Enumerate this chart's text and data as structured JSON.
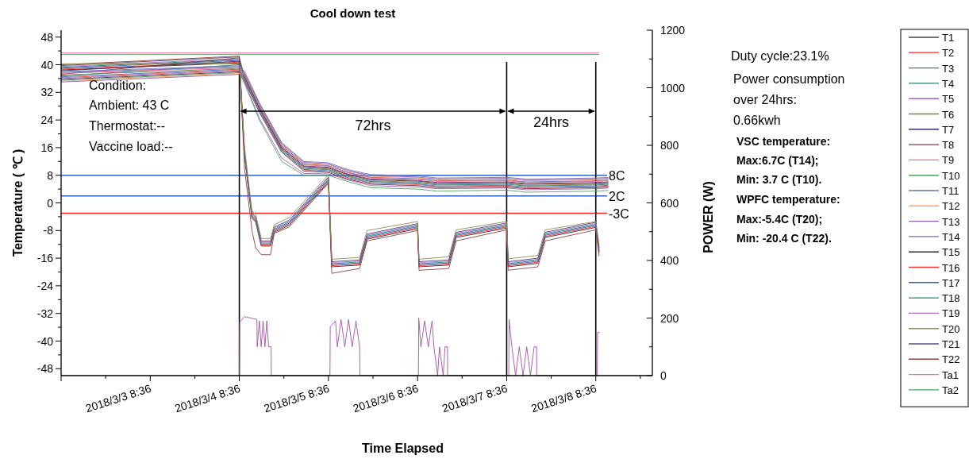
{
  "chart_data": {
    "type": "line",
    "title": "Cool down test",
    "xlabel": "Time Elapsed",
    "ylabel": "Temperature ( ℃ )",
    "y2label": "POWER (W)",
    "legend": "right",
    "annotations": [
      "72hrs",
      "24hrs",
      "Condition:",
      "Ambient: 43 C",
      "Thermostat:--",
      "Vaccine load:--",
      "Duty cycle:23.1%",
      "Power consumption",
      "over 24hrs:",
      "0.66kwh",
      "VSC temperature:",
      "Max:6.7C (T14);",
      "Min: 3.7 C (T10).",
      "WPFC temperature:",
      "Max:-5.4C (T20);",
      "Min: -20.4 C (T22)."
    ],
    "xlim": [
      "2018-03-02T08:36",
      "2018-03-08T23:50"
    ],
    "xticks": [
      {
        "value": "2018-03-02T08:36",
        "label": null
      },
      {
        "value": "2018-03-02T20:36",
        "label": null
      },
      {
        "value": "2018-03-03T08:36",
        "label": "2018/3/3 8:36"
      },
      {
        "value": "2018-03-03T20:36",
        "label": null
      },
      {
        "value": "2018-03-04T08:36",
        "label": "2018/3/4 8:36"
      },
      {
        "value": "2018-03-04T20:36",
        "label": null
      },
      {
        "value": "2018-03-05T08:36",
        "label": "2018/3/5 8:36"
      },
      {
        "value": "2018-03-05T20:36",
        "label": null
      },
      {
        "value": "2018-03-06T08:36",
        "label": "2018/3/6 8:36"
      },
      {
        "value": "2018-03-06T20:36",
        "label": null
      },
      {
        "value": "2018-03-07T08:36",
        "label": "2018/3/7 8:36"
      },
      {
        "value": "2018-03-07T20:36",
        "label": null
      },
      {
        "value": "2018-03-08T08:36",
        "label": "2018/3/8 8:36"
      },
      {
        "value": "2018-03-08T20:36",
        "label": null
      }
    ],
    "ylim": [
      -50,
      50
    ],
    "yticks": [
      -48,
      {
        "value": -44,
        "label": null
      },
      -40,
      {
        "value": -36,
        "label": null
      },
      -32,
      {
        "value": -28,
        "label": null
      },
      -24,
      {
        "value": -20,
        "label": null
      },
      -16,
      {
        "value": -12,
        "label": null
      },
      -8,
      {
        "value": -4,
        "label": null
      },
      0,
      {
        "value": 4,
        "label": null
      },
      8,
      {
        "value": 12,
        "label": null
      },
      16,
      {
        "value": 20,
        "label": null
      },
      24,
      {
        "value": 28,
        "label": null
      },
      32,
      {
        "value": 36,
        "label": null
      },
      40,
      {
        "value": 44,
        "label": null
      },
      48
    ],
    "y2lim": [
      0,
      1200
    ],
    "y2ticks": [
      0,
      {
        "value": 100,
        "label": null
      },
      200,
      {
        "value": 300,
        "label": null
      },
      400,
      {
        "value": 500,
        "label": null
      },
      600,
      {
        "value": 700,
        "label": null
      },
      800,
      {
        "value": 900,
        "label": null
      },
      1000,
      {
        "value": 1100,
        "label": null
      },
      1200
    ],
    "ref_lines": [
      {
        "axis": "y",
        "value": 8,
        "label": "8C",
        "color": "#3060c0"
      },
      {
        "axis": "y",
        "value": 2,
        "label": "2C",
        "color": "#3060c0"
      },
      {
        "axis": "y",
        "value": -3,
        "label": "-3C",
        "color": "#ff2020"
      },
      {
        "axis": "x",
        "value": "2018-03-04T08:36",
        "label": null,
        "color": "#000000"
      },
      {
        "axis": "x",
        "value": "2018-03-07T08:36",
        "label": null,
        "color": "#000000"
      },
      {
        "axis": "x",
        "value": "2018-03-08T08:36",
        "label": null,
        "color": "#000000"
      }
    ],
    "x": [
      "2018-03-02T08:36",
      "2018-03-04T08:36",
      "2018-03-04T10:00",
      "2018-03-04T14:00",
      "2018-03-04T20:00",
      "2018-03-05T02:00",
      "2018-03-05T08:36",
      "2018-03-05T14:00",
      "2018-03-05T20:00",
      "2018-03-06T08:36",
      "2018-03-06T14:00",
      "2018-03-07T08:36",
      "2018-03-07T14:00",
      "2018-03-08T08:36",
      "2018-03-08T12:00"
    ],
    "series": [
      {
        "name": "Ta1",
        "color": "#ff60a0",
        "x": [
          "2018-03-02T08:36",
          "2018-03-08T09:30"
        ],
        "values": [
          43.4,
          43.4
        ]
      },
      {
        "name": "Ta2",
        "color": "#50a060",
        "x": [
          "2018-03-02T08:36",
          "2018-03-08T09:30"
        ],
        "values": [
          43,
          43
        ]
      },
      {
        "name": "T15",
        "color": "#303030",
        "x": [
          "2018-03-02T08:36",
          "2018-03-04T08:36",
          "2018-03-04T10:00",
          "2018-03-04T12:00",
          "2018-03-04T13:00",
          "2018-03-04T14:30",
          "2018-03-04T17:00",
          "2018-03-04T18:00",
          "2018-03-04T22:00",
          "2018-03-05T08:36",
          "2018-03-05T09:30",
          "2018-03-05T17:00",
          "2018-03-05T19:00",
          "2018-03-06T08:36",
          "2018-03-06T09:00",
          "2018-03-06T17:00",
          "2018-03-06T19:00",
          "2018-03-07T08:36",
          "2018-03-07T09:00",
          "2018-03-07T17:00",
          "2018-03-07T19:00",
          "2018-03-08T08:36",
          "2018-03-08T09:30"
        ],
        "values": [
          38.5,
          40.5,
          13.5,
          -4.5,
          -5.5,
          -12.5,
          -12.5,
          -8.5,
          -6.5,
          6,
          -18.5,
          -18,
          -10.5,
          -7.5,
          -18.5,
          -18,
          -10,
          -7.3,
          -18.5,
          -17.5,
          -10,
          -7.1,
          -14.5
        ]
      },
      {
        "name": "T16",
        "color": "#ff3030",
        "x": [
          "2018-03-02T08:36",
          "2018-03-04T08:36",
          "2018-03-04T10:00",
          "2018-03-04T12:00",
          "2018-03-04T13:00",
          "2018-03-04T14:30",
          "2018-03-04T17:00",
          "2018-03-04T18:00",
          "2018-03-04T22:00",
          "2018-03-05T08:36",
          "2018-03-05T09:30",
          "2018-03-05T17:00",
          "2018-03-05T19:00",
          "2018-03-06T08:36",
          "2018-03-06T09:00",
          "2018-03-06T17:00",
          "2018-03-06T19:00",
          "2018-03-07T08:36",
          "2018-03-07T09:00",
          "2018-03-07T17:00",
          "2018-03-07T19:00",
          "2018-03-08T08:36",
          "2018-03-08T09:30"
        ],
        "values": [
          38.75,
          40.75,
          13.8,
          -4.2,
          -5.2,
          -12.2,
          -12.2,
          -8.2,
          -6.2,
          6.3,
          -18.2,
          -17.7,
          -10.2,
          -7.2,
          -18.2,
          -17.7,
          -9.7,
          -7,
          -18.2,
          -17.2,
          -9.7,
          -6.8,
          -14.2
        ]
      },
      {
        "name": "T17",
        "color": "#3060b0",
        "x": [
          "2018-03-02T08:36",
          "2018-03-04T08:36",
          "2018-03-04T10:00",
          "2018-03-04T12:00",
          "2018-03-04T13:00",
          "2018-03-04T14:30",
          "2018-03-04T17:00",
          "2018-03-04T18:00",
          "2018-03-04T22:00",
          "2018-03-05T08:36",
          "2018-03-05T09:30",
          "2018-03-05T17:00",
          "2018-03-05T19:00",
          "2018-03-06T08:36",
          "2018-03-06T09:00",
          "2018-03-06T17:00",
          "2018-03-06T19:00",
          "2018-03-07T08:36",
          "2018-03-07T09:00",
          "2018-03-07T17:00",
          "2018-03-07T19:00",
          "2018-03-08T08:36",
          "2018-03-08T09:30"
        ],
        "values": [
          39,
          41.25,
          14.1,
          -3.9,
          -4.9,
          -11.9,
          -11.9,
          -7.9,
          -5.9,
          6.6,
          -17.9,
          -17.4,
          -9.9,
          -6.9,
          -17.9,
          -17.4,
          -9.4,
          -6.7,
          -17.9,
          -16.9,
          -9.4,
          -6.5,
          -13.9
        ]
      },
      {
        "name": "T18",
        "color": "#208080",
        "x": [
          "2018-03-02T08:36",
          "2018-03-04T08:36",
          "2018-03-04T10:00",
          "2018-03-04T12:00",
          "2018-03-04T13:00",
          "2018-03-04T14:30",
          "2018-03-04T17:00",
          "2018-03-04T18:00",
          "2018-03-04T22:00",
          "2018-03-05T08:36",
          "2018-03-05T09:30",
          "2018-03-05T17:00",
          "2018-03-05T19:00",
          "2018-03-06T08:36",
          "2018-03-06T09:00",
          "2018-03-06T17:00",
          "2018-03-06T19:00",
          "2018-03-07T08:36",
          "2018-03-07T09:00",
          "2018-03-07T17:00",
          "2018-03-07T19:00",
          "2018-03-08T08:36",
          "2018-03-08T09:30"
        ],
        "values": [
          39.25,
          41.5,
          14.4,
          -3.6,
          -4.6,
          -11.6,
          -11.6,
          -7.6,
          -5.6,
          6.9,
          -17.6,
          -17.1,
          -9.6,
          -6.6,
          -17.6,
          -17.1,
          -9.1,
          -6.4,
          -17.6,
          -16.6,
          -9.1,
          -6.2,
          -13.6
        ]
      },
      {
        "name": "T19",
        "color": "#b070c0",
        "x": [
          "2018-03-02T08:36",
          "2018-03-04T08:36",
          "2018-03-04T10:00",
          "2018-03-04T12:00",
          "2018-03-04T13:00",
          "2018-03-04T14:30",
          "2018-03-04T17:00",
          "2018-03-04T18:00",
          "2018-03-04T22:00",
          "2018-03-05T08:36",
          "2018-03-05T09:30",
          "2018-03-05T17:00",
          "2018-03-05T19:00",
          "2018-03-06T08:36",
          "2018-03-06T09:00",
          "2018-03-06T17:00",
          "2018-03-06T19:00",
          "2018-03-07T08:36",
          "2018-03-07T09:00",
          "2018-03-07T17:00",
          "2018-03-07T19:00",
          "2018-03-08T08:36",
          "2018-03-08T09:30"
        ],
        "values": [
          39.5,
          41.75,
          14.7,
          -3.3,
          -4.3,
          -11.3,
          -11.3,
          -7.3,
          -5.3,
          7.2,
          -17.3,
          -16.8,
          -9.3,
          -6.3,
          -17.3,
          -16.8,
          -8.8,
          -6.1,
          -17.3,
          -16.3,
          -8.8,
          -5.9,
          -13.3
        ]
      },
      {
        "name": "T21",
        "color": "#505080",
        "x": [
          "2018-03-02T08:36",
          "2018-03-04T08:36",
          "2018-03-04T10:00",
          "2018-03-04T12:00",
          "2018-03-04T13:00",
          "2018-03-04T14:30",
          "2018-03-04T17:00",
          "2018-03-04T18:00",
          "2018-03-04T22:00",
          "2018-03-05T08:36",
          "2018-03-05T09:30",
          "2018-03-05T17:00",
          "2018-03-05T19:00",
          "2018-03-06T08:36",
          "2018-03-06T09:00",
          "2018-03-06T17:00",
          "2018-03-06T19:00",
          "2018-03-07T08:36",
          "2018-03-07T09:00",
          "2018-03-07T17:00",
          "2018-03-07T19:00",
          "2018-03-08T08:36",
          "2018-03-08T09:30"
        ],
        "values": [
          39.75,
          42.25,
          15,
          -3,
          -4,
          -11,
          -11,
          -7,
          -5,
          7.5,
          -17,
          -16.5,
          -9,
          -6,
          -17,
          -16.5,
          -8.5,
          -5.8,
          -17,
          -16,
          -8.5,
          -5.6,
          -13
        ]
      },
      {
        "name": "T22",
        "color": "#904040",
        "x": [
          "2018-03-02T08:36",
          "2018-03-04T08:36",
          "2018-03-04T10:00",
          "2018-03-04T12:00",
          "2018-03-04T13:00",
          "2018-03-04T14:30",
          "2018-03-04T17:00",
          "2018-03-04T18:00",
          "2018-03-04T22:00",
          "2018-03-05T08:36",
          "2018-03-05T09:30",
          "2018-03-05T17:00",
          "2018-03-05T19:00",
          "2018-03-06T08:36",
          "2018-03-06T09:00",
          "2018-03-06T17:00",
          "2018-03-06T19:00",
          "2018-03-07T08:36",
          "2018-03-07T09:00",
          "2018-03-07T17:00",
          "2018-03-07T19:00",
          "2018-03-08T08:36",
          "2018-03-08T09:30"
        ],
        "values": [
          40,
          42.5,
          10,
          -8,
          -13,
          -15,
          -15,
          -8.8,
          -7,
          5.7,
          -20.4,
          -19,
          -11,
          -8,
          -19.5,
          -19,
          -11,
          -7.8,
          -19.5,
          -18.5,
          -11,
          -7.8,
          -15.5
        ]
      },
      {
        "name": "T20",
        "color": "#909050",
        "x": [
          "2018-03-02T08:36",
          "2018-03-04T08:36",
          "2018-03-04T10:00",
          "2018-03-04T12:00",
          "2018-03-04T13:00",
          "2018-03-04T14:30",
          "2018-03-04T17:00",
          "2018-03-04T18:00",
          "2018-03-04T22:00",
          "2018-03-05T08:36",
          "2018-03-05T09:30",
          "2018-03-05T17:00",
          "2018-03-05T19:00",
          "2018-03-06T08:36",
          "2018-03-06T09:00",
          "2018-03-06T17:00",
          "2018-03-06T19:00",
          "2018-03-07T08:36",
          "2018-03-07T09:00",
          "2018-03-07T17:00",
          "2018-03-07T19:00",
          "2018-03-08T08:36",
          "2018-03-08T09:30"
        ],
        "values": [
          40.25,
          40.25,
          16,
          -2.4,
          -3.3,
          -10.3,
          -10.3,
          -6.3,
          -4.3,
          8.1,
          -16.3,
          -15.8,
          -8,
          -5.4,
          -16.3,
          -15.6,
          -7.8,
          -5.4,
          -16.2,
          -15.2,
          -7.8,
          -5.4,
          -12.2
        ]
      },
      {
        "name": "T1",
        "color": "#404040",
        "values": [
          35.75,
          37.95,
          35.2,
          26.2,
          14.7,
          9.2,
          8.8,
          6.8,
          5.4,
          5,
          4.4,
          4.6,
          4.1,
          4.4,
          4.6
        ]
      },
      {
        "name": "T2",
        "color": "#ff5050",
        "values": [
          36.25,
          38.45,
          35.5,
          26.5,
          15,
          9.5,
          9.1,
          7.1,
          5.7,
          5.3,
          4.7,
          4.9,
          4.4,
          4.7,
          4.9
        ]
      },
      {
        "name": "T3",
        "color": "#4070c0",
        "values": [
          36.5,
          38.7,
          35.7,
          26.7,
          15.2,
          9.7,
          9.3,
          7.3,
          5.9,
          5.5,
          4.9,
          5.1,
          4.6,
          4.9,
          5.1
        ]
      },
      {
        "name": "T4",
        "color": "#208080",
        "values": [
          36.75,
          40,
          36,
          27,
          15.5,
          10,
          9.6,
          7.6,
          6.2,
          5.8,
          5.2,
          5.4,
          4.9,
          5.2,
          5.4
        ]
      },
      {
        "name": "T5",
        "color": "#a060c0",
        "values": [
          36,
          38.2,
          35,
          24.5,
          13,
          8.5,
          8.4,
          6.6,
          5,
          4.6,
          4.1,
          4.3,
          3.8,
          4.1,
          4.3
        ]
      },
      {
        "name": "T6",
        "color": "#808040",
        "values": [
          37,
          38.95,
          36.2,
          27.2,
          15.7,
          10.2,
          9.8,
          7.8,
          6.4,
          6,
          5.4,
          5.6,
          5.1,
          5.4,
          5.6
        ]
      },
      {
        "name": "T7",
        "color": "#303070",
        "values": [
          38.25,
          41,
          36.5,
          27.5,
          16,
          10.5,
          10.1,
          8.1,
          6.7,
          6.3,
          5.7,
          5.9,
          5.4,
          5.7,
          5.9
        ]
      },
      {
        "name": "T8",
        "color": "#804040",
        "values": [
          37.25,
          42,
          36.7,
          27.7,
          16.2,
          10.7,
          10.3,
          8.3,
          6.9,
          6.5,
          5.9,
          6.1,
          5.6,
          5.9,
          6.1
        ]
      },
      {
        "name": "T9",
        "color": "#ff60a0",
        "values": [
          37.5,
          39.2,
          37,
          28,
          16.5,
          11,
          10.6,
          8.6,
          7.2,
          6.8,
          6.2,
          6.4,
          5.9,
          6.2,
          6.4
        ]
      },
      {
        "name": "T10",
        "color": "#50a060",
        "values": [
          35.5,
          37.7,
          34.5,
          24,
          12,
          8,
          8,
          6.1,
          4.4,
          4,
          3.4,
          3.7,
          3.1,
          3.4,
          3.6
        ]
      },
      {
        "name": "T11",
        "color": "#6070b0",
        "values": [
          37.75,
          39.45,
          37.2,
          28.2,
          16.7,
          11.2,
          10.8,
          8.8,
          7.4,
          7,
          6.4,
          6.6,
          6.1,
          6.4,
          6.6
        ]
      },
      {
        "name": "T12",
        "color": "#ffa060",
        "values": [
          35.25,
          37.45,
          37.5,
          28.5,
          17,
          11.5,
          11.1,
          9.1,
          7.7,
          7.3,
          6.7,
          6.9,
          6.4,
          6.7,
          6.9
        ]
      },
      {
        "name": "T13",
        "color": "#9060b0",
        "values": [
          35,
          37.2,
          37.7,
          28.7,
          17.2,
          11.7,
          11.3,
          9.3,
          7.9,
          7.5,
          6.9,
          7.1,
          6.6,
          6.9,
          7.1
        ]
      },
      {
        "name": "T14",
        "color": "#7070c0",
        "values": [
          38,
          39.7,
          38,
          29,
          17.5,
          12,
          11.6,
          9.6,
          8.2,
          7.8,
          7.2,
          7.4,
          6.9,
          7.2,
          7.4
        ]
      },
      {
        "color": "#a050a0",
        "axis": "y2",
        "x": [
          "2018-03-04T08:36",
          "2018-03-04T08:40",
          "2018-03-04T10:00",
          "2018-03-04T13:20",
          "2018-03-04T13:25",
          "2018-03-04T14:00",
          "2018-03-04T14:30",
          "2018-03-04T15:00",
          "2018-03-04T15:30",
          "2018-03-04T16:00",
          "2018-03-04T16:30",
          "2018-03-04T17:10",
          "2018-03-04T17:12",
          "2018-03-05T09:00",
          "2018-03-05T09:05",
          "2018-03-05T10:30",
          "2018-03-05T11:00",
          "2018-03-05T12:00",
          "2018-03-05T13:00",
          "2018-03-05T14:00",
          "2018-03-05T15:00",
          "2018-03-05T16:00",
          "2018-03-05T17:00",
          "2018-03-05T17:05",
          "2018-03-06T08:50",
          "2018-03-06T08:55",
          "2018-03-06T09:30",
          "2018-03-06T10:30",
          "2018-03-06T11:30",
          "2018-03-06T12:30",
          "2018-03-06T13:00",
          "2018-03-06T14:00",
          "2018-03-06T14:30",
          "2018-03-06T15:30",
          "2018-03-06T16:00",
          "2018-03-06T16:40",
          "2018-03-06T16:42",
          "2018-03-07T09:10",
          "2018-03-07T09:15",
          "2018-03-07T10:00",
          "2018-03-07T11:00",
          "2018-03-07T12:00",
          "2018-03-07T13:00",
          "2018-03-07T14:00",
          "2018-03-07T15:00",
          "2018-03-07T16:00",
          "2018-03-07T16:40",
          "2018-03-07T16:42",
          "2018-03-08T09:00",
          "2018-03-08T09:05",
          "2018-03-08T09:40"
        ],
        "values": [
          0,
          185,
          205,
          195,
          100,
          190,
          100,
          190,
          100,
          190,
          100,
          100,
          0,
          0,
          170,
          190,
          100,
          195,
          100,
          195,
          100,
          190,
          100,
          0,
          0,
          200,
          100,
          190,
          100,
          190,
          100,
          0,
          100,
          0,
          100,
          100,
          0,
          0,
          195,
          100,
          0,
          100,
          0,
          100,
          0,
          100,
          100,
          0,
          0,
          150,
          150
        ]
      }
    ]
  }
}
